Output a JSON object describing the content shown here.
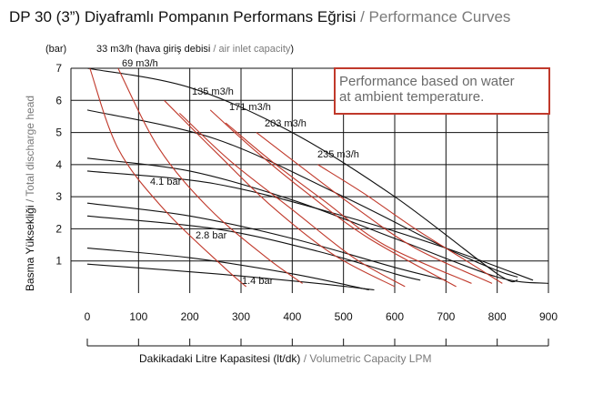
{
  "title": {
    "main": "DP 30 (3”) Diyaframlı Pompanın Performans Eğrisi",
    "separator": " / ",
    "sub": "Performance Curves"
  },
  "y_unit": "(bar)",
  "air_label": {
    "main": "33 m3/h (hava giriş debisi",
    "separator": " / ",
    "sub": "air inlet capacity",
    "close": ")"
  },
  "y_axis_title": {
    "main": "Basma Yüksekliği",
    "separator": " / ",
    "sub": "Total discharge head"
  },
  "x_axis_title": {
    "main": "Dakikadaki Litre Kapasitesi (lt/dk)",
    "separator": " / ",
    "sub": "Volumetric Capacity LPM"
  },
  "note": {
    "line1": "Performance based on water",
    "line2": "at ambient temperature.",
    "border_color": "#c0392b"
  },
  "colors": {
    "air_curve": "#c0392b",
    "pressure_curve": "#111111",
    "grid": "#111111"
  },
  "chart_data": {
    "type": "line",
    "xlim": [
      0,
      900
    ],
    "ylim": [
      0,
      7
    ],
    "x_ticks": [
      0,
      100,
      200,
      300,
      400,
      500,
      600,
      700,
      800,
      900
    ],
    "y_ticks": [
      1,
      2,
      3,
      4,
      5,
      6,
      7
    ],
    "grid": true,
    "air_series": [
      {
        "name": "33 m3/h",
        "points": [
          [
            5,
            7
          ],
          [
            60,
            4.5
          ],
          [
            150,
            2.6
          ],
          [
            260,
            0.9
          ],
          [
            310,
            0.2
          ]
        ]
      },
      {
        "name": "69 m3/h",
        "points": [
          [
            60,
            7
          ],
          [
            140,
            4.5
          ],
          [
            240,
            2.6
          ],
          [
            350,
            1.1
          ],
          [
            420,
            0.3
          ]
        ]
      },
      {
        "name": "135 m3/h",
        "points": [
          [
            150,
            6
          ],
          [
            250,
            4.4
          ],
          [
            360,
            2.7
          ],
          [
            480,
            1.2
          ],
          [
            600,
            0.2
          ]
        ]
      },
      {
        "name": "",
        "points": [
          [
            180,
            5.6
          ],
          [
            280,
            4.1
          ],
          [
            400,
            2.6
          ],
          [
            520,
            1.1
          ],
          [
            620,
            0.2
          ]
        ]
      },
      {
        "name": "171 m3/h",
        "points": [
          [
            240,
            5.7
          ],
          [
            330,
            4.4
          ],
          [
            430,
            3.1
          ],
          [
            550,
            1.7
          ],
          [
            720,
            0.2
          ]
        ]
      },
      {
        "name": "",
        "points": [
          [
            270,
            5.3
          ],
          [
            360,
            4.1
          ],
          [
            460,
            2.9
          ],
          [
            580,
            1.5
          ],
          [
            750,
            0.3
          ]
        ]
      },
      {
        "name": "203 m3/h",
        "points": [
          [
            330,
            5.0
          ],
          [
            420,
            3.9
          ],
          [
            520,
            2.7
          ],
          [
            640,
            1.4
          ],
          [
            790,
            0.3
          ]
        ]
      },
      {
        "name": "235 m3/h",
        "points": [
          [
            450,
            4.0
          ],
          [
            540,
            3.1
          ],
          [
            640,
            2.0
          ],
          [
            740,
            1.0
          ],
          [
            810,
            0.3
          ]
        ]
      }
    ],
    "pressure_series": [
      {
        "name": "",
        "points": [
          [
            0,
            7
          ],
          [
            200,
            6.4
          ],
          [
            400,
            5.0
          ],
          [
            600,
            3.0
          ],
          [
            800,
            0.6
          ],
          [
            840,
            0.4
          ]
        ]
      },
      {
        "name": "",
        "points": [
          [
            0,
            5.7
          ],
          [
            250,
            4.8
          ],
          [
            500,
            3.0
          ],
          [
            700,
            1.4
          ],
          [
            800,
            0.7
          ],
          [
            840,
            0.5
          ]
        ]
      },
      {
        "name": "4.1 bar",
        "points": [
          [
            0,
            4.2
          ],
          [
            200,
            3.8
          ],
          [
            400,
            2.9
          ],
          [
            600,
            1.7
          ],
          [
            800,
            0.5
          ],
          [
            900,
            0.3
          ]
        ]
      },
      {
        "name": "",
        "points": [
          [
            0,
            3.8
          ],
          [
            250,
            3.4
          ],
          [
            500,
            2.4
          ],
          [
            700,
            1.4
          ],
          [
            870,
            0.4
          ]
        ]
      },
      {
        "name": "",
        "points": [
          [
            0,
            2.8
          ],
          [
            200,
            2.4
          ],
          [
            400,
            1.7
          ],
          [
            600,
            0.8
          ],
          [
            700,
            0.4
          ]
        ]
      },
      {
        "name": "2.8 bar",
        "points": [
          [
            0,
            2.4
          ],
          [
            250,
            2.0
          ],
          [
            450,
            1.3
          ],
          [
            600,
            0.6
          ],
          [
            650,
            0.4
          ]
        ]
      },
      {
        "name": "",
        "points": [
          [
            0,
            1.4
          ],
          [
            200,
            1.1
          ],
          [
            400,
            0.6
          ],
          [
            550,
            0.1
          ]
        ]
      },
      {
        "name": "1.4 bar",
        "points": [
          [
            0,
            0.9
          ],
          [
            250,
            0.6
          ],
          [
            450,
            0.3
          ],
          [
            560,
            0.1
          ]
        ]
      }
    ]
  }
}
